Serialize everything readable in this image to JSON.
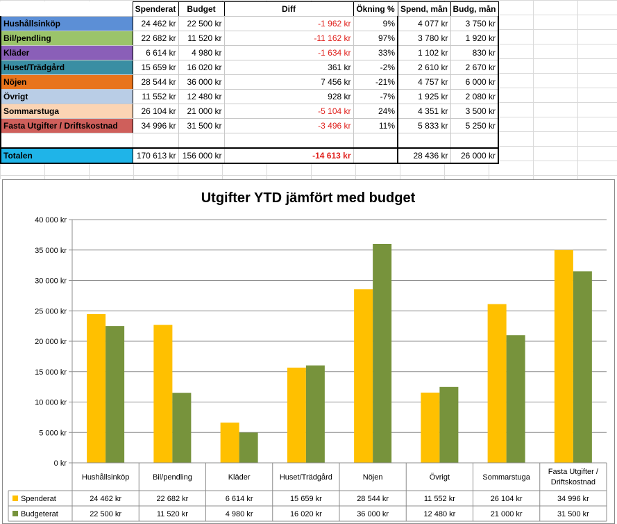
{
  "table": {
    "headers": [
      "",
      "Spenderat",
      "Budget",
      "Diff",
      "Ökning %",
      "Spend, mån",
      "Budg, mån"
    ],
    "rows": [
      {
        "category": "Hushållsinköp",
        "color": "#5c8fd6",
        "spent": "24 462 kr",
        "budget": "22 500 kr",
        "diff": "-1 962 kr",
        "diff_negative": true,
        "increase": "9%",
        "spend_month": "4 077 kr",
        "budget_month": "3 750 kr"
      },
      {
        "category": "Bil/pendling",
        "color": "#9bc46a",
        "spent": "22 682 kr",
        "budget": "11 520 kr",
        "diff": "-11 162 kr",
        "diff_negative": true,
        "increase": "97%",
        "spend_month": "3 780 kr",
        "budget_month": "1 920 kr"
      },
      {
        "category": "Kläder",
        "color": "#8a5fb8",
        "spent": "6 614 kr",
        "budget": "4 980 kr",
        "diff": "-1 634 kr",
        "diff_negative": true,
        "increase": "33%",
        "spend_month": "1 102 kr",
        "budget_month": "830 kr"
      },
      {
        "category": "Huset/Trädgård",
        "color": "#3a8ea3",
        "spent": "15 659 kr",
        "budget": "16 020 kr",
        "diff": "361 kr",
        "diff_negative": false,
        "increase": "-2%",
        "spend_month": "2 610 kr",
        "budget_month": "2 670 kr"
      },
      {
        "category": "Nöjen",
        "color": "#e8741c",
        "spent": "28 544 kr",
        "budget": "36 000 kr",
        "diff": "7 456 kr",
        "diff_negative": false,
        "increase": "-21%",
        "spend_month": "4 757 kr",
        "budget_month": "6 000 kr"
      },
      {
        "category": "Övrigt",
        "color": "#b9cde6",
        "spent": "11 552 kr",
        "budget": "12 480 kr",
        "diff": "928 kr",
        "diff_negative": false,
        "increase": "-7%",
        "spend_month": "1 925 kr",
        "budget_month": "2 080 kr"
      },
      {
        "category": "Sommarstuga",
        "color": "#fbd4b4",
        "spent": "26 104 kr",
        "budget": "21 000 kr",
        "diff": "-5 104 kr",
        "diff_negative": true,
        "increase": "24%",
        "spend_month": "4 351 kr",
        "budget_month": "3 500 kr"
      },
      {
        "category": "Fasta Utgifter / Driftskostnad",
        "color": "#cf5f5b",
        "spent": "34 996 kr",
        "budget": "31 500 kr",
        "diff": "-3 496 kr",
        "diff_negative": true,
        "increase": "11%",
        "spend_month": "5 833 kr",
        "budget_month": "5 250 kr"
      }
    ],
    "total": {
      "category": "Totalen",
      "color": "#1fb4e8",
      "spent": "170 613 kr",
      "budget": "156 000 kr",
      "diff": "-14 613 kr",
      "increase": "",
      "spend_month": "28 436 kr",
      "budget_month": "26 000 kr"
    }
  },
  "chart_data": {
    "type": "bar",
    "title": "Utgifter YTD jämfört med budget",
    "categories": [
      "Hushållsinköp",
      "Bil/pendling",
      "Kläder",
      "Huset/Trädgård",
      "Nöjen",
      "Övrigt",
      "Sommarstuga",
      "Fasta Utgifter / Driftskostnad"
    ],
    "series": [
      {
        "name": "Spenderat",
        "color": "#ffc000",
        "values": [
          24462,
          22682,
          6614,
          15659,
          28544,
          11552,
          26104,
          34996
        ],
        "labels": [
          "24 462 kr",
          "22 682 kr",
          "6 614 kr",
          "15 659 kr",
          "28 544 kr",
          "11 552 kr",
          "26 104 kr",
          "34 996 kr"
        ]
      },
      {
        "name": "Budgeterat",
        "color": "#77933c",
        "values": [
          22500,
          11520,
          4980,
          16020,
          36000,
          12480,
          21000,
          31500
        ],
        "labels": [
          "22 500 kr",
          "11 520 kr",
          "4 980 kr",
          "16 020 kr",
          "36 000 kr",
          "12 480 kr",
          "21 000 kr",
          "31 500 kr"
        ]
      }
    ],
    "ylim": [
      0,
      40000
    ],
    "yticks": [
      0,
      5000,
      10000,
      15000,
      20000,
      25000,
      30000,
      35000,
      40000
    ],
    "ytick_labels": [
      "0 kr",
      "5 000 kr",
      "10 000 kr",
      "15 000 kr",
      "20 000 kr",
      "25 000 kr",
      "30 000 kr",
      "35 000 kr",
      "40 000 kr"
    ],
    "grid": true,
    "legend": "data-table-below"
  }
}
